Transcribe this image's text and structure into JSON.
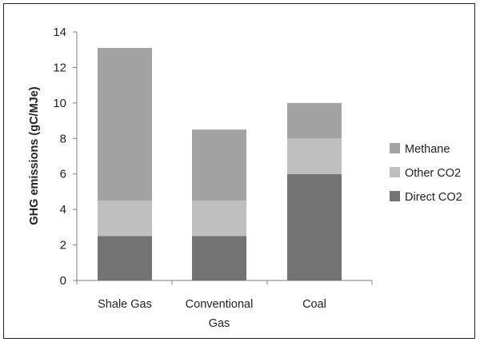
{
  "chart_data": {
    "type": "bar",
    "stacked": true,
    "title": "",
    "xlabel": "",
    "ylabel": "GHG emissions (gC/MJe)",
    "ylim": [
      0,
      14
    ],
    "yticks": [
      0,
      2,
      4,
      6,
      8,
      10,
      12,
      14
    ],
    "categories": [
      [
        "Shale Gas"
      ],
      [
        "Conventional",
        "Gas"
      ],
      [
        "Coal"
      ]
    ],
    "series": [
      {
        "name": "Direct CO2",
        "color": "#737373",
        "values": [
          2.5,
          2.5,
          6.0
        ]
      },
      {
        "name": "Other CO2",
        "color": "#bfbfbf",
        "values": [
          2.0,
          2.0,
          2.0
        ]
      },
      {
        "name": "Methane",
        "color": "#a3a3a3",
        "values": [
          8.6,
          4.0,
          2.0
        ]
      }
    ],
    "legend_position": "right",
    "grid": false
  }
}
